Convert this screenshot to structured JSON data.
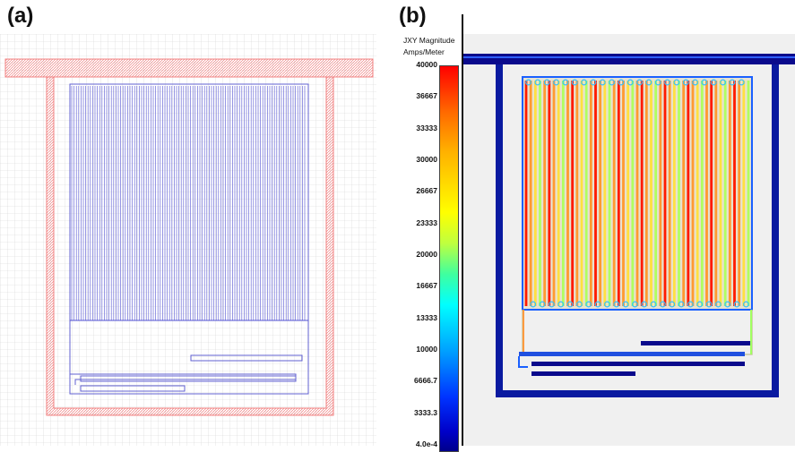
{
  "panels": {
    "a": {
      "label": "(a)"
    },
    "b": {
      "label": "(b)"
    }
  },
  "colorbar": {
    "title_line1": "JXY Magnitude",
    "title_line2": "Amps/Meter",
    "ticks": [
      "40000",
      "36667",
      "33333",
      "30000",
      "26667",
      "23333",
      "20000",
      "16667",
      "13333",
      "10000",
      "6666.7",
      "3333.3",
      "4.0e-4"
    ]
  },
  "colors": {
    "outer_trace": "#f08080",
    "coil_trace": "#5050d0",
    "grid": "#cfcfcf",
    "field_background": "#f0f0f0",
    "high_field": "#ff0000",
    "low_field": "#00008b"
  }
}
